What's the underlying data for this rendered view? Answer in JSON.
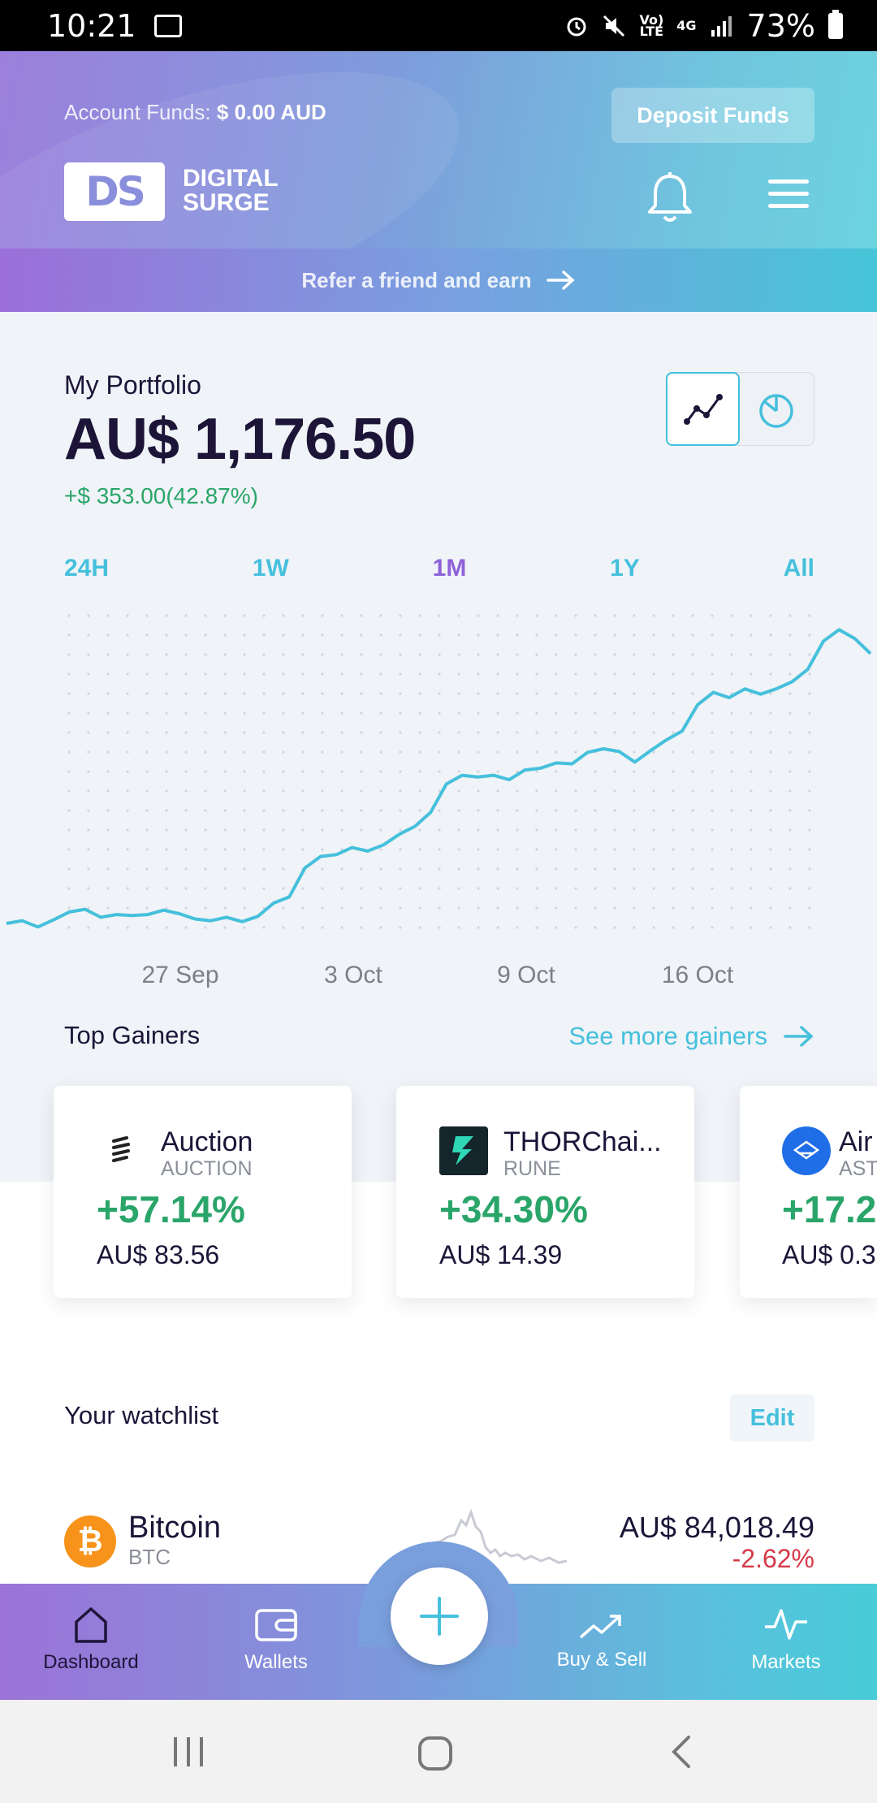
{
  "status_bar": {
    "time": "10:21",
    "battery": "73%",
    "network_top": "Vo)",
    "network_bottom": "LTE",
    "signal_label": "4G"
  },
  "header": {
    "funds_label": "Account Funds:",
    "funds_value": "$ 0.00 AUD",
    "deposit_label": "Deposit Funds",
    "logo_mark": "DS",
    "logo_line1": "DIGITAL",
    "logo_line2": "SURGE"
  },
  "refer": {
    "label": "Refer a friend and earn"
  },
  "portfolio": {
    "label": "My Portfolio",
    "value": "AU$ 1,176.50",
    "change": "+$ 353.00(42.87%)",
    "ranges": [
      "24H",
      "1W",
      "1M",
      "1Y",
      "All"
    ],
    "active_range": "1M"
  },
  "chart_data": {
    "type": "line",
    "x_tick_labels": [
      "27 Sep",
      "3 Oct",
      "9 Oct",
      "16 Oct"
    ],
    "values": [
      842,
      845,
      838,
      846,
      855,
      858,
      849,
      852,
      851,
      852,
      857,
      853,
      847,
      845,
      849,
      844,
      850,
      865,
      872,
      905,
      918,
      920,
      928,
      924,
      931,
      943,
      952,
      968,
      1000,
      1010,
      1008,
      1010,
      1005,
      1016,
      1018,
      1024,
      1023,
      1036,
      1040,
      1037,
      1025,
      1038,
      1050,
      1060,
      1090,
      1104,
      1098,
      1108,
      1102,
      1108,
      1116,
      1130,
      1162,
      1175,
      1165,
      1148
    ],
    "color": "#45c0dc",
    "grid": "dotted",
    "accent": "#45c0dc"
  },
  "gainers": {
    "title": "Top Gainers",
    "see_more": "See more gainers",
    "cards": [
      {
        "name": "Auction",
        "symbol": "AUCTION",
        "change": "+57.14%",
        "price": "AU$ 83.56"
      },
      {
        "name": "THORChai...",
        "symbol": "RUNE",
        "change": "+34.30%",
        "price": "AU$ 14.39"
      },
      {
        "name": "Air",
        "symbol": "AST",
        "change": "+17.2",
        "price": "AU$ 0.3"
      }
    ]
  },
  "watchlist": {
    "title": "Your watchlist",
    "edit_label": "Edit",
    "items": [
      {
        "name": "Bitcoin",
        "symbol": "BTC",
        "price": "AU$ 84,018.49",
        "change": "-2.62%",
        "icon": "₿"
      }
    ]
  },
  "bottom_nav": {
    "items": [
      {
        "label": "Dashboard",
        "icon": "home-icon"
      },
      {
        "label": "Wallets",
        "icon": "wallet-icon"
      },
      {
        "label": "Buy & Sell",
        "icon": "trend-icon"
      },
      {
        "label": "Markets",
        "icon": "pulse-icon"
      }
    ],
    "fab_icon": "plus-icon"
  }
}
